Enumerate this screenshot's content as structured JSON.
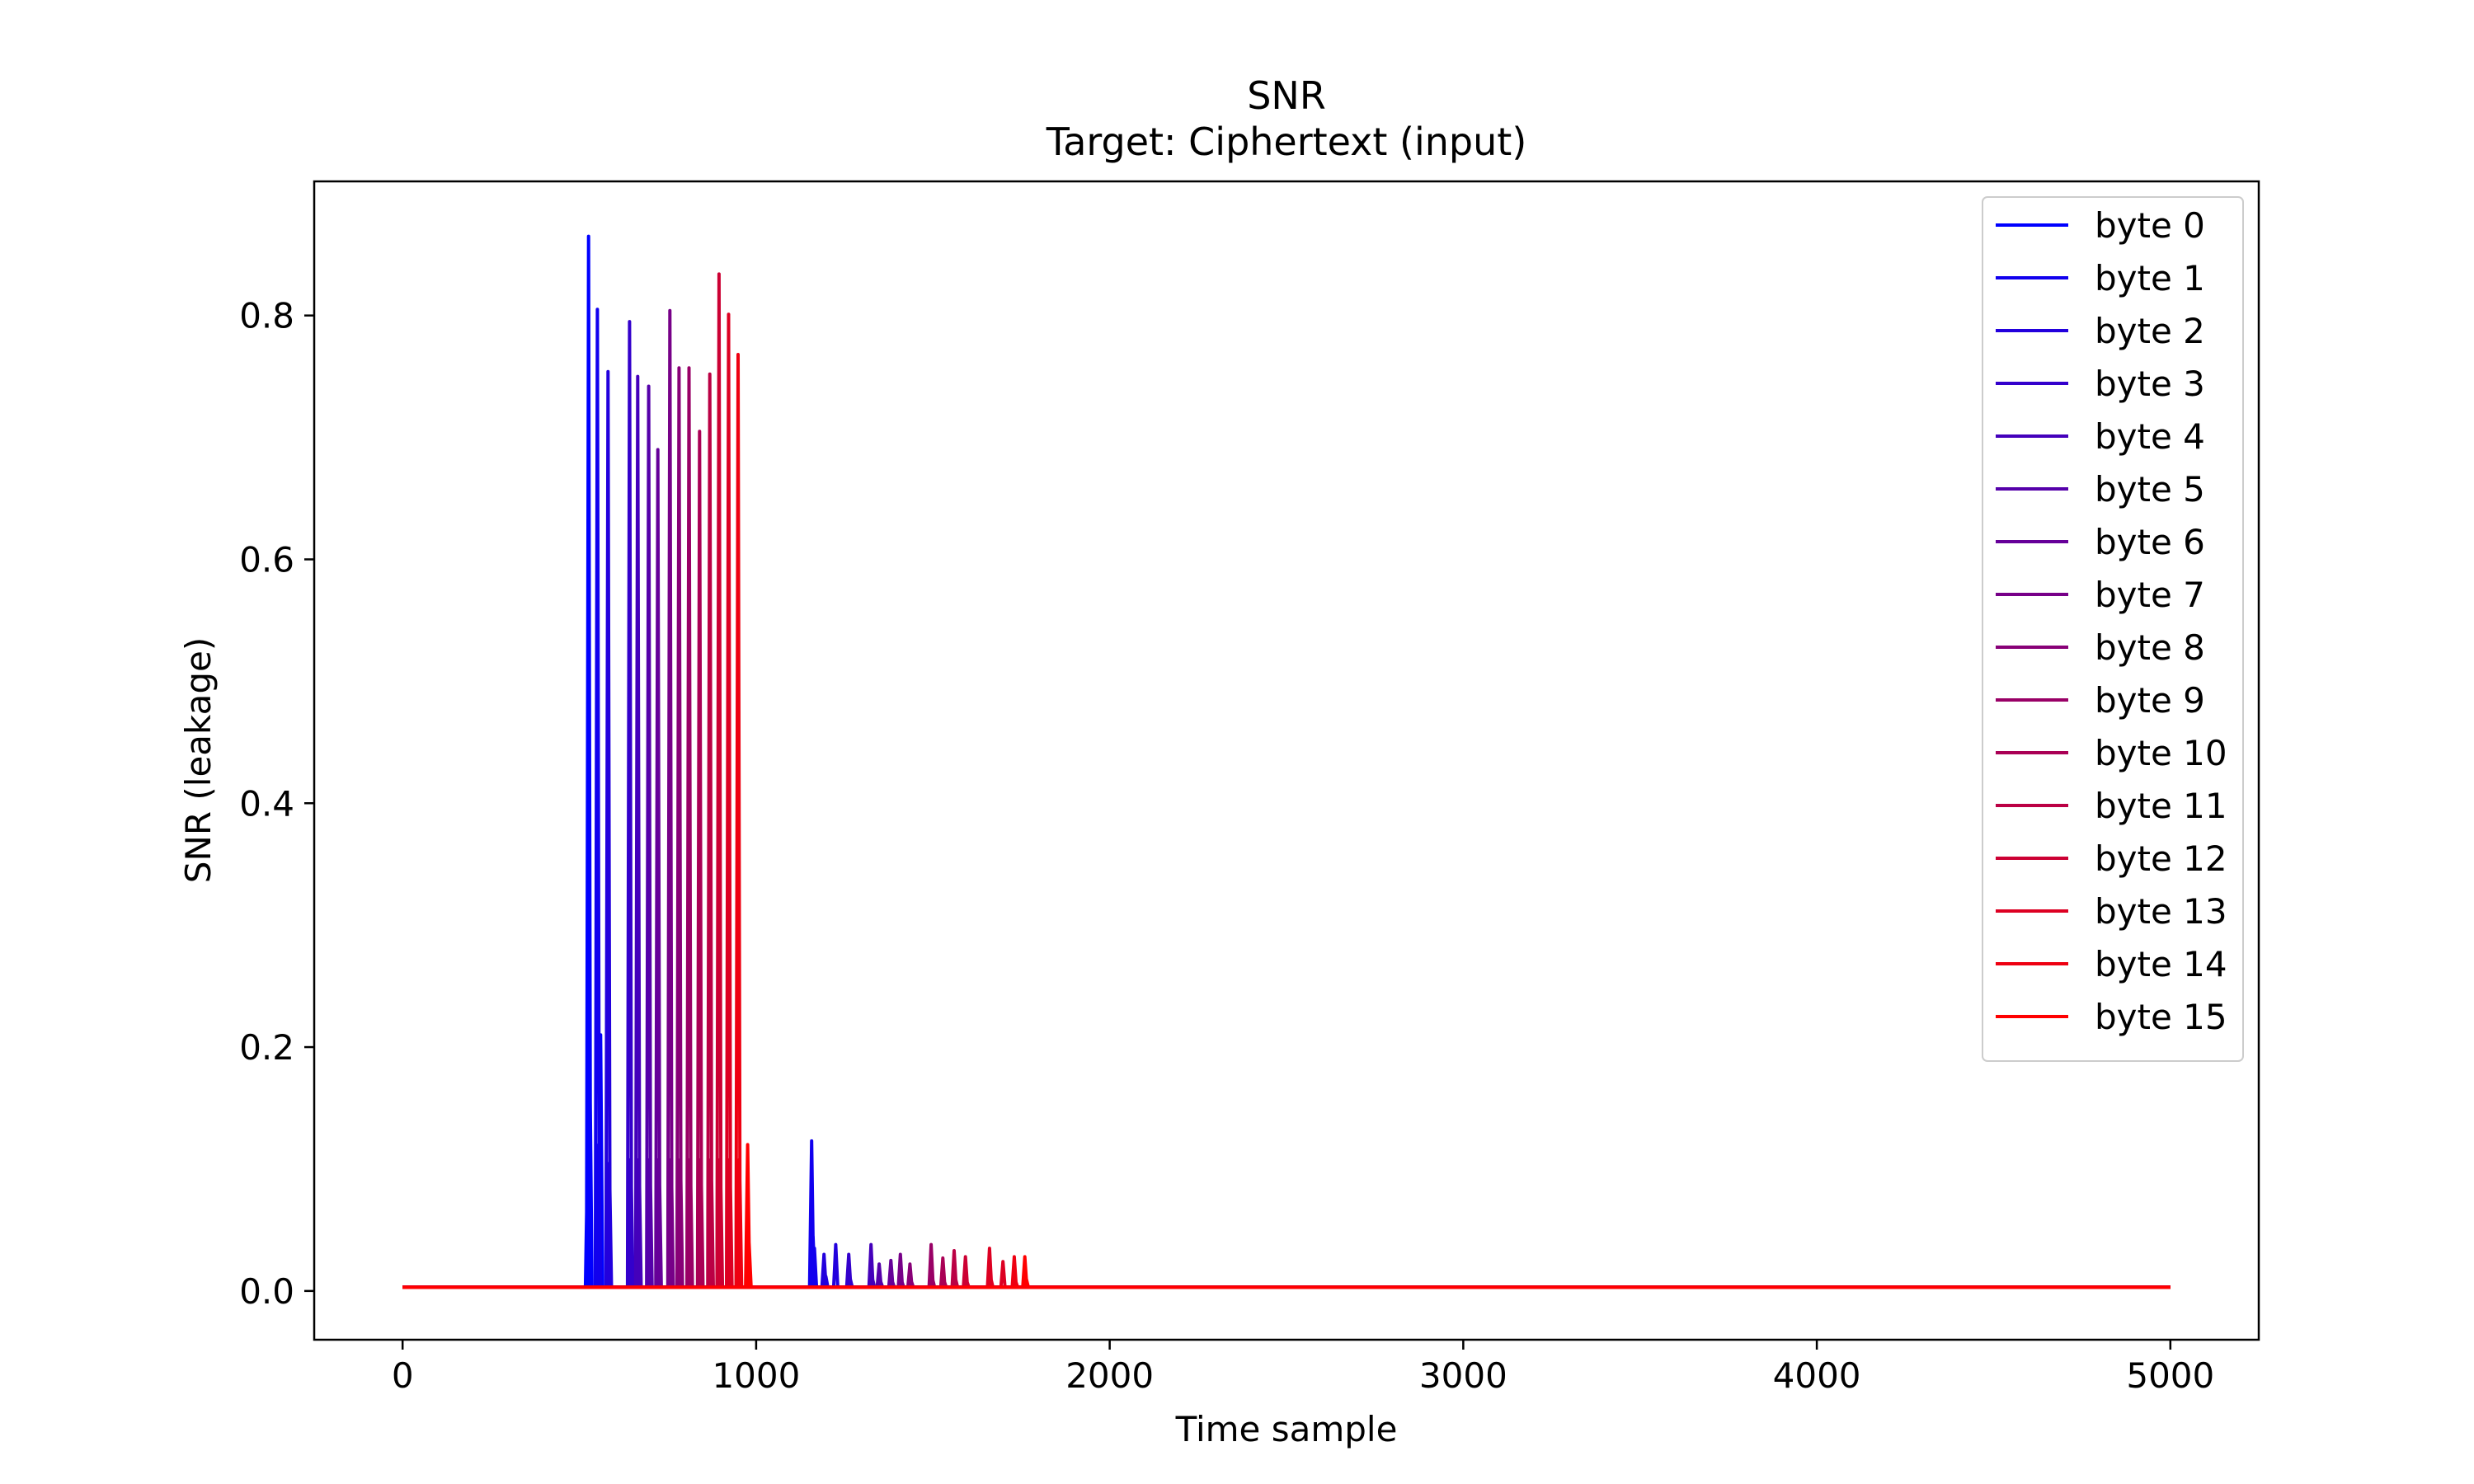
{
  "chart_data": {
    "type": "line",
    "title": "SNR",
    "subtitle": "Target: Ciphertext (input)",
    "xlabel": "Time sample",
    "ylabel": "SNR (leakage)",
    "xlim": [
      -250,
      5250
    ],
    "ylim": [
      -0.04,
      0.91
    ],
    "xticks": [
      0,
      1000,
      2000,
      3000,
      4000,
      5000
    ],
    "xtick_labels": [
      "0",
      "1000",
      "2000",
      "3000",
      "4000",
      "5000"
    ],
    "yticks": [
      0.0,
      0.2,
      0.4,
      0.6,
      0.8
    ],
    "ytick_labels": [
      "0.0",
      "0.2",
      "0.4",
      "0.6",
      "0.8"
    ],
    "grid": false,
    "legend_position": "top-right",
    "baseline": 0.003,
    "series": [
      {
        "name": "byte 0",
        "color": "#0000ff",
        "x": [
          523,
          526,
          530,
          560
        ],
        "y": [
          0.107,
          0.865,
          0.18,
          0.21
        ]
      },
      {
        "name": "byte 1",
        "color": "#1100ee",
        "x": [
          551,
          555,
          1157,
          1161,
          1165
        ],
        "y": [
          0.805,
          0.12,
          0.123,
          0.045,
          0.035
        ]
      },
      {
        "name": "byte 2",
        "color": "#2200dd",
        "x": [
          581,
          585,
          1192,
          1197,
          1225
        ],
        "y": [
          0.754,
          0.105,
          0.03,
          0.012,
          0.038
        ]
      },
      {
        "name": "byte 3",
        "color": "#3300cc",
        "x": [
          642,
          646,
          1262,
          1266
        ],
        "y": [
          0.795,
          0.108,
          0.03,
          0.01
        ]
      },
      {
        "name": "byte 4",
        "color": "#4400bb",
        "x": [
          665,
          669,
          1325,
          1329
        ],
        "y": [
          0.75,
          0.108,
          0.038,
          0.01
        ]
      },
      {
        "name": "byte 5",
        "color": "#5500aa",
        "x": [
          696,
          700,
          1348,
          1352
        ],
        "y": [
          0.742,
          0.108,
          0.022,
          0.008
        ]
      },
      {
        "name": "byte 6",
        "color": "#660099",
        "x": [
          722,
          726,
          1381,
          1385
        ],
        "y": [
          0.69,
          0.108,
          0.025,
          0.008
        ]
      },
      {
        "name": "byte 7",
        "color": "#770088",
        "x": [
          756,
          760,
          1408,
          1412
        ],
        "y": [
          0.804,
          0.108,
          0.03,
          0.008
        ]
      },
      {
        "name": "byte 8",
        "color": "#880077",
        "x": [
          782,
          786,
          1435,
          1439
        ],
        "y": [
          0.757,
          0.108,
          0.022,
          0.008
        ]
      },
      {
        "name": "byte 9",
        "color": "#990066",
        "x": [
          810,
          814,
          1495,
          1499
        ],
        "y": [
          0.757,
          0.108,
          0.038,
          0.01
        ]
      },
      {
        "name": "byte 10",
        "color": "#aa0055",
        "x": [
          840,
          844,
          1528,
          1532
        ],
        "y": [
          0.705,
          0.108,
          0.027,
          0.008
        ]
      },
      {
        "name": "byte 11",
        "color": "#bb0044",
        "x": [
          869,
          873,
          1560,
          1564
        ],
        "y": [
          0.752,
          0.108,
          0.033,
          0.01
        ]
      },
      {
        "name": "byte 12",
        "color": "#cc0033",
        "x": [
          895,
          899,
          1592,
          1596
        ],
        "y": [
          0.834,
          0.108,
          0.028,
          0.008
        ]
      },
      {
        "name": "byte 13",
        "color": "#dd0022",
        "x": [
          922,
          926,
          1660,
          1664,
          1698
        ],
        "y": [
          0.801,
          0.108,
          0.035,
          0.01,
          0.024
        ]
      },
      {
        "name": "byte 14",
        "color": "#ee0011",
        "x": [
          949,
          953,
          1730,
          1734
        ],
        "y": [
          0.768,
          0.108,
          0.028,
          0.008
        ]
      },
      {
        "name": "byte 15",
        "color": "#ff0000",
        "x": [
          976,
          980,
          1760,
          1764
        ],
        "y": [
          0.12,
          0.04,
          0.028,
          0.01
        ]
      }
    ]
  }
}
